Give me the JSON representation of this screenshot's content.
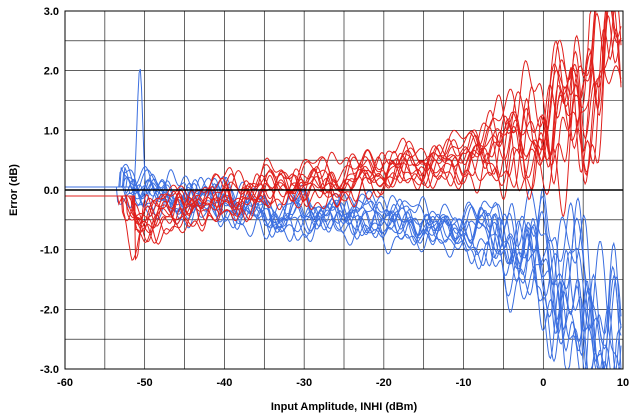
{
  "chart_data": {
    "type": "line",
    "title": "",
    "xlabel": "Input Amplitude, INHI (dBm)",
    "ylabel": "Error (dB)",
    "xlim": [
      -60,
      10
    ],
    "ylim": [
      -3.0,
      3.0
    ],
    "x_ticks": [
      -60,
      -50,
      -40,
      -30,
      -20,
      -10,
      0,
      10
    ],
    "x_tick_labels": [
      "-60",
      "-50",
      "-40",
      "-30",
      "-20",
      "-10",
      "0",
      "10"
    ],
    "y_ticks": [
      3.0,
      2.0,
      1.0,
      0.0,
      -1.0,
      -2.0,
      -3.0
    ],
    "y_tick_labels": [
      "3.0",
      "2.0",
      "1.0",
      "0.0",
      "-1.0",
      "-2.0",
      "-3.0"
    ],
    "x_minor_step": 5,
    "y_minor_step": 0.5,
    "grid": true,
    "legend": "none",
    "colors": {
      "blue": "#3b6fe0",
      "red": "#e0201c",
      "zero_line": "#000000"
    },
    "series_groups": [
      {
        "color": "blue",
        "count": 12,
        "approx_level_start": 0.05,
        "peaks": [
          {
            "x": -52.3,
            "y": 2.25
          },
          {
            "x": -50.6,
            "y": 2.05
          }
        ],
        "trend_points": [
          [
            -60,
            0.05
          ],
          [
            -54,
            0.05
          ],
          [
            -50,
            0.0
          ],
          [
            -40,
            -0.3
          ],
          [
            -30,
            -0.45
          ],
          [
            -20,
            -0.5
          ],
          [
            -10,
            -0.7
          ],
          [
            0,
            -1.2
          ],
          [
            5,
            -2.2
          ],
          [
            8,
            -3.0
          ]
        ]
      },
      {
        "color": "red",
        "count": 12,
        "approx_level_start": -0.1,
        "troughs": [
          {
            "x": -52.5,
            "y": -1.7
          },
          {
            "x": -51.5,
            "y": -1.4
          }
        ],
        "trend_points": [
          [
            -60,
            -0.1
          ],
          [
            -54,
            -0.1
          ],
          [
            -50,
            -0.5
          ],
          [
            -40,
            -0.1
          ],
          [
            -30,
            0.1
          ],
          [
            -20,
            0.3
          ],
          [
            -10,
            0.55
          ],
          [
            0,
            1.0
          ],
          [
            5,
            1.5
          ],
          [
            8,
            3.0
          ]
        ]
      }
    ]
  }
}
